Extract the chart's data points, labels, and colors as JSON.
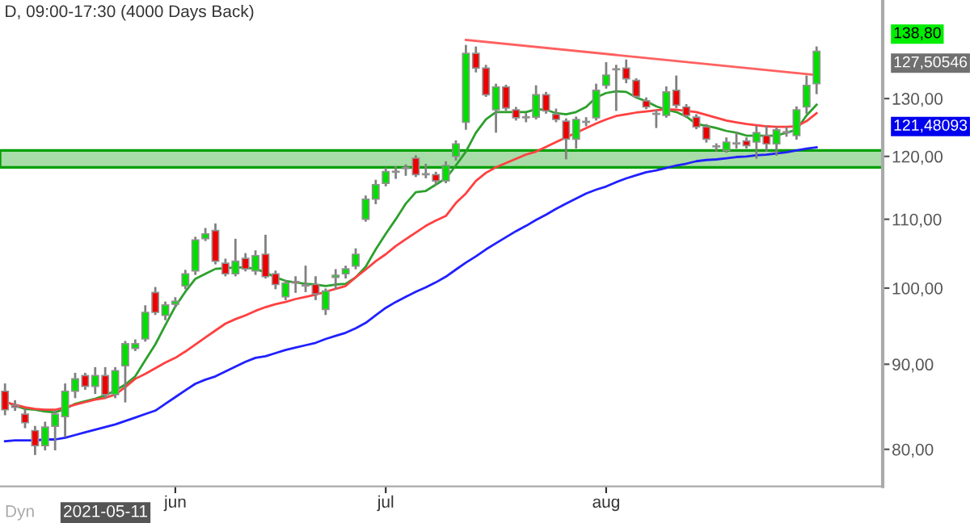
{
  "chart_data": {
    "type": "candlestick",
    "title": "D, 09:00-17:30 (4000 Days Back)",
    "categories": [
      null,
      null,
      null,
      null,
      null,
      null,
      null,
      null,
      null,
      null,
      null,
      null,
      null,
      null,
      null,
      null,
      null,
      "jun",
      null,
      null,
      null,
      null,
      null,
      null,
      null,
      null,
      null,
      null,
      null,
      null,
      null,
      null,
      null,
      null,
      null,
      null,
      null,
      null,
      "jul",
      null,
      null,
      null,
      null,
      null,
      null,
      null,
      null,
      null,
      null,
      null,
      null,
      null,
      null,
      null,
      null,
      null,
      null,
      null,
      null,
      null,
      "aug",
      null,
      null,
      null,
      null,
      null,
      null,
      null,
      null,
      null,
      null,
      null,
      null,
      null,
      null,
      null,
      null,
      null,
      null,
      null,
      null,
      null
    ],
    "ohlc": [
      [
        86.7,
        87.5,
        84,
        84.5
      ],
      [
        85,
        85.5,
        84.5,
        84.8
      ],
      [
        84,
        84.5,
        82.5,
        83
      ],
      [
        82.1,
        82.5,
        79.5,
        80.4
      ],
      [
        80.4,
        83,
        80,
        82.5
      ],
      [
        82.6,
        84.3,
        80,
        84
      ],
      [
        83.7,
        87.5,
        81.5,
        86.7
      ],
      [
        86.7,
        88.8,
        86,
        88.2
      ],
      [
        88.6,
        88.8,
        87,
        87.3
      ],
      [
        87.3,
        89.5,
        86.5,
        88.6
      ],
      [
        88.6,
        89.5,
        86,
        86.3
      ],
      [
        86.3,
        89.5,
        86,
        89.2
      ],
      [
        89.8,
        92.8,
        85.5,
        92.6
      ],
      [
        92,
        93,
        91.8,
        92.6
      ],
      [
        93.2,
        97.5,
        93,
        96.7
      ],
      [
        99.4,
        100,
        96.5,
        96.7
      ],
      [
        96.3,
        98,
        95.8,
        97.7
      ],
      [
        97.8,
        98.6,
        97.5,
        98.2
      ],
      [
        100.3,
        102.4,
        100,
        102
      ],
      [
        102.4,
        107.2,
        102,
        106.9
      ],
      [
        107.1,
        108.5,
        106.9,
        107.8
      ],
      [
        108.3,
        109.2,
        103.5,
        103.8
      ],
      [
        103.5,
        104,
        101.8,
        102
      ],
      [
        102,
        106.9,
        101.8,
        103.8
      ],
      [
        104.2,
        104.8,
        102.5,
        102.7
      ],
      [
        102.4,
        105.2,
        102,
        104.6
      ],
      [
        104.8,
        107.5,
        101.5,
        101.6
      ],
      [
        102,
        102.3,
        100,
        100.5
      ],
      [
        98.8,
        101,
        98.5,
        100.7
      ],
      [
        100.9,
        101.5,
        99.5,
        100.7
      ],
      [
        100.3,
        103,
        99.6,
        100.3
      ],
      [
        100.5,
        101.5,
        98.5,
        99.2
      ],
      [
        97.1,
        99.8,
        96.5,
        99.6
      ],
      [
        101.5,
        102.5,
        100,
        101.8
      ],
      [
        102,
        103,
        101.5,
        102.7
      ],
      [
        103.1,
        105.5,
        102.8,
        104.8
      ],
      [
        110,
        113.5,
        109.8,
        113.1
      ],
      [
        113.1,
        116,
        112.5,
        115.4
      ],
      [
        115.6,
        118,
        115.3,
        117.5
      ],
      [
        117.5,
        118.2,
        116.5,
        117.4
      ],
      [
        118,
        118.5,
        117,
        118
      ],
      [
        119.7,
        120,
        116.8,
        117
      ],
      [
        117,
        118.6,
        116.6,
        117
      ],
      [
        117,
        117.3,
        115.5,
        116
      ],
      [
        116,
        119,
        115.8,
        118.5
      ],
      [
        120,
        122.5,
        119.5,
        122.1
      ],
      [
        125.8,
        139.8,
        124.7,
        138.4
      ],
      [
        138.4,
        139.5,
        135,
        135.6
      ],
      [
        135.6,
        136,
        130.5,
        130.7
      ],
      [
        128,
        132.5,
        124.2,
        132.1
      ],
      [
        132.1,
        132.3,
        128,
        128.3
      ],
      [
        128,
        128.3,
        126.3,
        126.6
      ],
      [
        126.6,
        127.2,
        126,
        126.6
      ],
      [
        126.7,
        132.2,
        126.5,
        130.7
      ],
      [
        130.7,
        131,
        127.5,
        127.8
      ],
      [
        127.2,
        128,
        126,
        126.3
      ],
      [
        126,
        126.3,
        119.7,
        122.9
      ],
      [
        122.9,
        126.6,
        121.5,
        126.3
      ],
      [
        125.8,
        126.5,
        125.3,
        125.8
      ],
      [
        126.6,
        132.5,
        126.3,
        131.5
      ],
      [
        132.4,
        136.5,
        132,
        134.3
      ],
      [
        135.3,
        136,
        128,
        135.3
      ],
      [
        135.6,
        137,
        133,
        133.6
      ],
      [
        133.3,
        133.5,
        130.2,
        130.4
      ],
      [
        129.6,
        130,
        128.3,
        128.5
      ],
      [
        127.2,
        127.8,
        125,
        127.2
      ],
      [
        127,
        132,
        126.8,
        131.2
      ],
      [
        131.5,
        134,
        128.5,
        128.8
      ],
      [
        128.5,
        128.8,
        126.8,
        127
      ],
      [
        126.7,
        127,
        124.8,
        125
      ],
      [
        125,
        125.3,
        122.5,
        122.9
      ],
      [
        121.6,
        122,
        121,
        121.6
      ],
      [
        121,
        123,
        120.8,
        122.4
      ],
      [
        122.1,
        124,
        121.5,
        122.1
      ],
      [
        122.6,
        123,
        121.5,
        121.8
      ],
      [
        122.4,
        125,
        119.8,
        124
      ],
      [
        123.5,
        125,
        121,
        122.1
      ],
      [
        122.1,
        124.8,
        120.3,
        124.5
      ],
      [
        124,
        124.8,
        123.5,
        124
      ],
      [
        123.5,
        128.4,
        123,
        128
      ],
      [
        128.5,
        134,
        127.5,
        132.4
      ],
      [
        132.7,
        139.5,
        131,
        138.8
      ]
    ],
    "colors": [
      "#ee0000",
      "#ee0000",
      "#ee0000",
      "#ee0000",
      "#00e000",
      "#00e000",
      "#00e000",
      "#00e000",
      "#ee0000",
      "#00e000",
      "#ee0000",
      "#00e000",
      "#00e000",
      "#00e000",
      "#00e000",
      "#ee0000",
      "#00e000",
      "#00e000",
      "#00e000",
      "#00e000",
      "#00e000",
      "#ee0000",
      "#ee0000",
      "#00e000",
      "#ee0000",
      "#00e000",
      "#ee0000",
      "#ee0000",
      "#00e000",
      "#ee0000",
      "#00e000",
      "#ee0000",
      "#00e000",
      "#00e000",
      "#00e000",
      "#00e000",
      "#00e000",
      "#00e000",
      "#00e000",
      "#ee0000",
      "#00e000",
      "#ee0000",
      "#00e000",
      "#ee0000",
      "#00e000",
      "#00e000",
      "#00e000",
      "#ee0000",
      "#ee0000",
      "#00e000",
      "#ee0000",
      "#ee0000",
      "#00e000",
      "#00e000",
      "#ee0000",
      "#ee0000",
      "#ee0000",
      "#00e000",
      "#00e000",
      "#00e000",
      "#00e000",
      "#00e000",
      "#ee0000",
      "#ee0000",
      "#ee0000",
      "#00e000",
      "#00e000",
      "#ee0000",
      "#ee0000",
      "#ee0000",
      "#ee0000",
      "#00e000",
      "#00e000",
      "#00e000",
      "#ee0000",
      "#00e000",
      "#ee0000",
      "#00e000",
      "#00e000",
      "#00e000",
      "#00e000",
      "#00e000"
    ],
    "series": [
      {
        "type": "line",
        "color": "#2ca02c",
        "values": [
          85.5,
          85,
          84.6,
          84.5,
          84.3,
          84.2,
          84.6,
          85.2,
          85.5,
          85.8,
          86.2,
          86.8,
          87.5,
          88.5,
          90.5,
          92.5,
          95,
          97.5,
          99.5,
          101.3,
          102,
          102.7,
          102.8,
          102.9,
          102.9,
          102.7,
          102.2,
          101.5,
          101,
          100.8,
          100.6,
          100.5,
          100.3,
          100.5,
          100.6,
          101.5,
          103,
          105.5,
          107.8,
          110,
          112.4,
          114.2,
          114.4,
          115.4,
          116.4,
          118.5,
          120.8,
          124,
          126.3,
          127.6,
          127.6,
          127.6,
          127.6,
          128.1,
          128,
          127.4,
          127.2,
          127.6,
          128.5,
          130.2,
          131,
          131.3,
          131.2,
          130.2,
          129.5,
          128.6,
          128,
          127.6,
          126.8,
          125.5,
          125.2,
          124.8,
          124.3,
          124,
          123.5,
          123.5,
          123.5,
          123.5,
          124,
          124.5,
          127,
          128.9
        ]
      },
      {
        "type": "line",
        "color": "#ff4040",
        "values": [
          85.4,
          85.1,
          84.8,
          84.6,
          84.5,
          84.5,
          84.8,
          85.1,
          85.4,
          85.7,
          85.9,
          86.3,
          87.2,
          88.2,
          88.8,
          89.5,
          90.2,
          90.8,
          91.6,
          92.5,
          93.4,
          94.3,
          95.2,
          95.8,
          96.3,
          96.9,
          97.4,
          97.8,
          98.1,
          98.5,
          98.8,
          99.1,
          99.5,
          99.9,
          100.3,
          101.5,
          102.6,
          103.8,
          104.8,
          106,
          107,
          108,
          109,
          109.8,
          110.5,
          112.5,
          114,
          116,
          117.3,
          118.2,
          118.9,
          119.6,
          120.3,
          120.8,
          121.6,
          122.4,
          123.2,
          124,
          124.8,
          125.6,
          126.3,
          126.9,
          127.2,
          127.5,
          127.7,
          127.9,
          128.1,
          128,
          127.8,
          127.6,
          127.1,
          126.6,
          126.1,
          125.8,
          125.5,
          125.3,
          125.1,
          125,
          125,
          125.1,
          126,
          127.4
        ]
      },
      {
        "type": "line",
        "color": "#2020ff",
        "values": [
          80.9,
          81,
          81,
          81,
          81.1,
          81.1,
          81.3,
          81.6,
          81.9,
          82.2,
          82.5,
          82.8,
          83.2,
          83.6,
          84,
          84.4,
          85.2,
          86,
          86.8,
          87.6,
          88.1,
          88.5,
          89.1,
          89.7,
          90.3,
          90.8,
          91,
          91.4,
          91.8,
          92.1,
          92.4,
          92.7,
          93.2,
          93.6,
          94,
          94.6,
          95.3,
          96.3,
          97.3,
          98.1,
          98.8,
          99.5,
          100.1,
          100.8,
          101.6,
          102.6,
          103.6,
          104.5,
          105.5,
          106.4,
          107.3,
          108.2,
          109,
          109.9,
          110.7,
          111.6,
          112.4,
          113.2,
          114,
          114.6,
          115.1,
          115.8,
          116.4,
          116.9,
          117.4,
          117.7,
          118.1,
          118.5,
          118.8,
          119.2,
          119.4,
          119.5,
          119.7,
          119.9,
          120,
          120.2,
          120.3,
          120.5,
          120.7,
          121,
          121.3,
          121.5
        ]
      },
      {
        "type": "line",
        "color": "#ff6060",
        "values": [
          null,
          null,
          null,
          null,
          null,
          null,
          null,
          null,
          null,
          null,
          null,
          null,
          null,
          null,
          null,
          null,
          null,
          null,
          null,
          null,
          null,
          null,
          null,
          null,
          null,
          null,
          null,
          null,
          null,
          null,
          null,
          null,
          null,
          null,
          null,
          null,
          null,
          null,
          null,
          null,
          null,
          null,
          null,
          null,
          null,
          null,
          141.0,
          null,
          null,
          null,
          null,
          null,
          null,
          null,
          null,
          null,
          null,
          null,
          null,
          null,
          null,
          null,
          null,
          null,
          null,
          null,
          null,
          null,
          null,
          null,
          null,
          null,
          null,
          null,
          null,
          null,
          null,
          null,
          null,
          null,
          null,
          134.3
        ]
      }
    ],
    "bands": [
      {
        "axis": "y",
        "from": 118.2,
        "to": 121.0,
        "color": "#a8dca8"
      }
    ],
    "log": true,
    "ylim": [
      76,
      149
    ],
    "yticks": [
      {
        "value": 80,
        "label": "80,00"
      },
      {
        "value": 90,
        "label": "90,00"
      },
      {
        "value": 100,
        "label": "100,00"
      },
      {
        "value": 110,
        "label": "110,00"
      },
      {
        "value": 120,
        "label": "120,00"
      },
      {
        "value": 130,
        "label": "130,00"
      }
    ],
    "grid": false,
    "annotations": [
      "138,80",
      "127,50546",
      "121,48093",
      "Dyn",
      "2021-05-11"
    ]
  }
}
